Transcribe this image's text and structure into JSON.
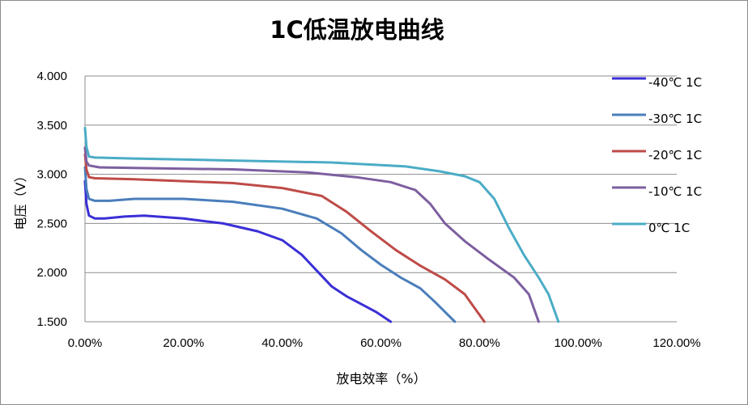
{
  "chart_data": {
    "type": "line",
    "title": "1C低温放电曲线",
    "xlabel": "放电效率（%）",
    "ylabel": "电压（V）",
    "xlim": [
      0,
      120
    ],
    "ylim": [
      1.5,
      4.0
    ],
    "x_ticks": [
      "0.00%",
      "20.00%",
      "40.00%",
      "60.00%",
      "80.00%",
      "100.00%",
      "120.00%"
    ],
    "y_ticks": [
      "1.500",
      "2.000",
      "2.500",
      "3.000",
      "3.500",
      "4.000"
    ],
    "grid": "horizontal",
    "legend_position": "right",
    "series": [
      {
        "name": "-40℃ 1C",
        "color": "#3a2fd6",
        "points": [
          [
            0,
            2.93
          ],
          [
            0.3,
            2.7
          ],
          [
            0.8,
            2.58
          ],
          [
            2,
            2.55
          ],
          [
            4,
            2.55
          ],
          [
            8,
            2.57
          ],
          [
            12,
            2.58
          ],
          [
            20,
            2.55
          ],
          [
            28,
            2.5
          ],
          [
            35,
            2.42
          ],
          [
            40,
            2.33
          ],
          [
            44,
            2.18
          ],
          [
            47,
            2.02
          ],
          [
            50,
            1.86
          ],
          [
            53,
            1.76
          ],
          [
            56,
            1.68
          ],
          [
            59,
            1.6
          ],
          [
            62,
            1.5
          ]
        ]
      },
      {
        "name": "-30℃ 1C",
        "color": "#4a7ebb",
        "points": [
          [
            0,
            3.07
          ],
          [
            0.3,
            2.85
          ],
          [
            0.8,
            2.75
          ],
          [
            2,
            2.73
          ],
          [
            5,
            2.73
          ],
          [
            10,
            2.75
          ],
          [
            20,
            2.75
          ],
          [
            30,
            2.72
          ],
          [
            40,
            2.65
          ],
          [
            47,
            2.55
          ],
          [
            52,
            2.4
          ],
          [
            56,
            2.23
          ],
          [
            60,
            2.08
          ],
          [
            64,
            1.95
          ],
          [
            68,
            1.84
          ],
          [
            71,
            1.7
          ],
          [
            75,
            1.5
          ]
        ]
      },
      {
        "name": "-20℃ 1C",
        "color": "#be4b48",
        "points": [
          [
            0,
            3.2
          ],
          [
            0.3,
            3.05
          ],
          [
            0.8,
            2.97
          ],
          [
            2,
            2.96
          ],
          [
            10,
            2.95
          ],
          [
            20,
            2.93
          ],
          [
            30,
            2.91
          ],
          [
            40,
            2.86
          ],
          [
            48,
            2.78
          ],
          [
            53,
            2.62
          ],
          [
            58,
            2.42
          ],
          [
            63,
            2.23
          ],
          [
            68,
            2.07
          ],
          [
            73,
            1.93
          ],
          [
            77,
            1.78
          ],
          [
            81,
            1.5
          ]
        ]
      },
      {
        "name": "-10℃ 1C",
        "color": "#7d5fa0",
        "points": [
          [
            0,
            3.27
          ],
          [
            0.3,
            3.13
          ],
          [
            0.8,
            3.09
          ],
          [
            3,
            3.07
          ],
          [
            15,
            3.06
          ],
          [
            30,
            3.05
          ],
          [
            45,
            3.02
          ],
          [
            55,
            2.97
          ],
          [
            62,
            2.92
          ],
          [
            67,
            2.84
          ],
          [
            70,
            2.7
          ],
          [
            73,
            2.5
          ],
          [
            77,
            2.32
          ],
          [
            82,
            2.13
          ],
          [
            87,
            1.95
          ],
          [
            90,
            1.78
          ],
          [
            92,
            1.5
          ]
        ]
      },
      {
        "name": "0℃ 1C",
        "color": "#4bacc6",
        "points": [
          [
            0,
            3.47
          ],
          [
            0.3,
            3.28
          ],
          [
            0.8,
            3.18
          ],
          [
            2,
            3.17
          ],
          [
            10,
            3.16
          ],
          [
            30,
            3.14
          ],
          [
            50,
            3.12
          ],
          [
            65,
            3.08
          ],
          [
            72,
            3.03
          ],
          [
            77,
            2.98
          ],
          [
            80,
            2.92
          ],
          [
            83,
            2.75
          ],
          [
            86,
            2.45
          ],
          [
            89,
            2.18
          ],
          [
            92,
            1.95
          ],
          [
            94,
            1.78
          ],
          [
            96,
            1.5
          ]
        ]
      }
    ]
  }
}
